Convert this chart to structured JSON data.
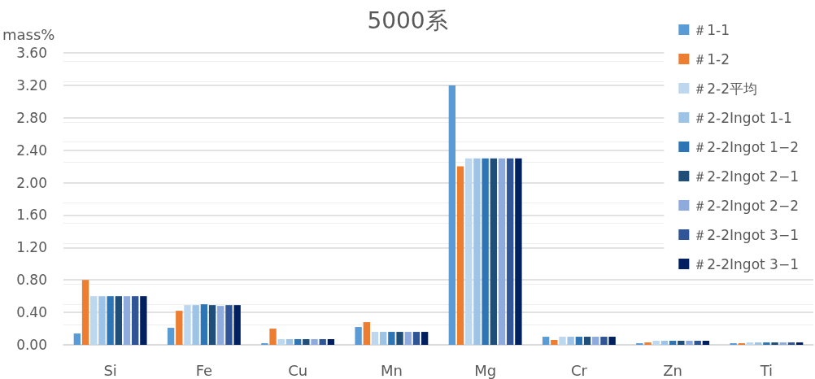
{
  "chart_data": {
    "type": "bar",
    "title": "5000系",
    "ylabel": "mass%",
    "categories": [
      "Si",
      "Fe",
      "Cu",
      "Mn",
      "Mg",
      "Cr",
      "Zn",
      "Ti"
    ],
    "series": [
      {
        "name": "＃1-1",
        "color": "#5b9bd5",
        "values": [
          0.14,
          0.21,
          0.02,
          0.22,
          3.2,
          0.1,
          0.02,
          0.02
        ]
      },
      {
        "name": "＃1-2",
        "color": "#ed7d31",
        "values": [
          0.8,
          0.42,
          0.2,
          0.28,
          2.2,
          0.06,
          0.03,
          0.02
        ]
      },
      {
        "name": "＃2-2平均",
        "color": "#bdd7ee",
        "values": [
          0.6,
          0.49,
          0.07,
          0.16,
          2.3,
          0.1,
          0.05,
          0.03
        ]
      },
      {
        "name": "＃2-2Ingot 1-1",
        "color": "#9dc3e6",
        "values": [
          0.6,
          0.49,
          0.07,
          0.16,
          2.3,
          0.1,
          0.05,
          0.03
        ]
      },
      {
        "name": "＃2-2Ingot 1−2",
        "color": "#2e75b6",
        "values": [
          0.6,
          0.5,
          0.07,
          0.16,
          2.3,
          0.1,
          0.05,
          0.03
        ]
      },
      {
        "name": "＃2-2Ingot 2−1",
        "color": "#1f4e79",
        "values": [
          0.6,
          0.49,
          0.07,
          0.16,
          2.3,
          0.1,
          0.05,
          0.03
        ]
      },
      {
        "name": "＃2-2Ingot 2−2",
        "color": "#8faadc",
        "values": [
          0.6,
          0.48,
          0.07,
          0.16,
          2.3,
          0.1,
          0.05,
          0.03
        ]
      },
      {
        "name": "＃2-2Ingot 3−1",
        "color": "#2f5597",
        "values": [
          0.6,
          0.49,
          0.07,
          0.16,
          2.3,
          0.1,
          0.05,
          0.03
        ]
      },
      {
        "name": "＃2-2Ingot 3−1",
        "color": "#002060",
        "values": [
          0.6,
          0.49,
          0.07,
          0.16,
          2.3,
          0.1,
          0.05,
          0.03
        ]
      }
    ],
    "ylim": [
      0,
      3.6
    ],
    "yticks": [
      {
        "value": 0,
        "label": "0.00"
      },
      {
        "value": 0.4,
        "label": "0.40"
      },
      {
        "value": 0.8,
        "label": "0.80"
      },
      {
        "value": 1.2,
        "label": "1.20"
      },
      {
        "value": 1.6,
        "label": "1.60"
      },
      {
        "value": 2.0,
        "label": "2.00"
      },
      {
        "value": 2.4,
        "label": "2.40"
      },
      {
        "value": 2.8,
        "label": "2.80"
      },
      {
        "value": 3.2,
        "label": "3.20"
      },
      {
        "value": 3.6,
        "label": "3.60"
      }
    ],
    "grid": true,
    "legend": "top right"
  }
}
